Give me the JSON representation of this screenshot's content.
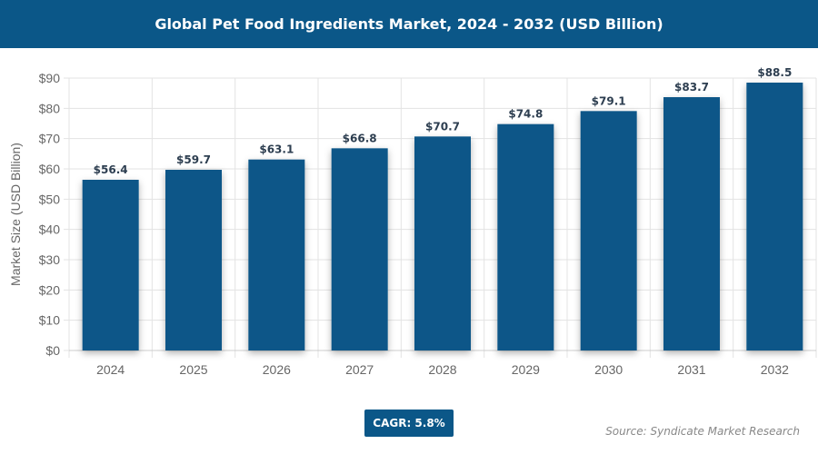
{
  "chart_data": {
    "type": "bar",
    "title": "Global Pet Food Ingredients Market, 2024 - 2032 (USD Billion)",
    "xlabel": "",
    "ylabel": "Market Size (USD Billion)",
    "categories": [
      "2024",
      "2025",
      "2026",
      "2027",
      "2028",
      "2029",
      "2030",
      "2031",
      "2032"
    ],
    "values": [
      56.4,
      59.7,
      63.1,
      66.8,
      70.7,
      74.8,
      79.1,
      83.7,
      88.5
    ],
    "data_labels": [
      "$56.4",
      "$59.7",
      "$63.1",
      "$66.8",
      "$70.7",
      "$74.8",
      "$79.1",
      "$83.7",
      "$88.5"
    ],
    "ylim": [
      0,
      90
    ],
    "yticks": [
      "$0",
      "$10",
      "$20",
      "$30",
      "$40",
      "$50",
      "$60",
      "$70",
      "$80",
      "$90"
    ],
    "grid": true,
    "bar_color": "#0b5788"
  },
  "cagr_label": "CAGR: 5.8%",
  "source": "Source: Syndicate Market Research"
}
